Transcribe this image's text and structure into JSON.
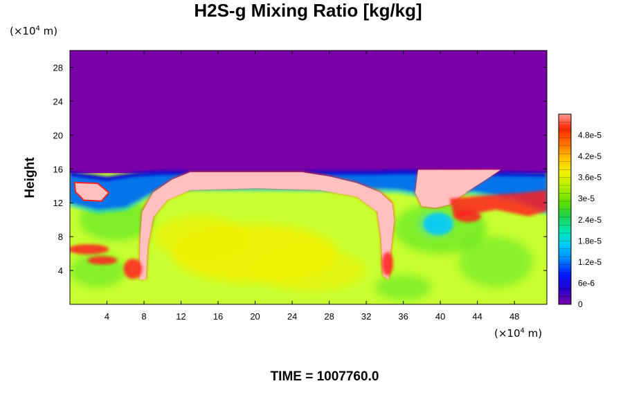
{
  "chart_data": {
    "type": "heatmap",
    "title": "H2S-g Mixing Ratio [kg/kg]",
    "ylabel": "Height",
    "x_units_base": "(×10",
    "x_units_exp": "4",
    "x_units_tail": " m)",
    "y_units_base": "(×10",
    "y_units_exp": "4",
    "y_units_tail": " m)",
    "footer": "TIME = 1007760.0",
    "xlim": [
      0,
      51.5
    ],
    "ylim": [
      0,
      30
    ],
    "x_ticks": [
      4,
      8,
      12,
      16,
      20,
      24,
      28,
      32,
      36,
      40,
      44,
      48
    ],
    "y_ticks": [
      4,
      8,
      12,
      16,
      20,
      24,
      28
    ],
    "colorbar": {
      "range": [
        0,
        5.4e-05
      ],
      "ticks": [
        {
          "value": 0,
          "label": "0"
        },
        {
          "value": 6e-06,
          "label": "6e-6"
        },
        {
          "value": 1.2e-05,
          "label": "1.2e-5"
        },
        {
          "value": 1.8e-05,
          "label": "1.8e-5"
        },
        {
          "value": 2.4e-05,
          "label": "2.4e-5"
        },
        {
          "value": 3e-05,
          "label": "3e-5"
        },
        {
          "value": 3.6e-05,
          "label": "3.6e-5"
        },
        {
          "value": 4.2e-05,
          "label": "4.2e-5"
        },
        {
          "value": 4.8e-05,
          "label": "4.8e-5"
        }
      ],
      "colors": [
        "#7a00a8",
        "#2a00c8",
        "#0018ff",
        "#0080ff",
        "#00c8ff",
        "#00e8b0",
        "#20d050",
        "#60e000",
        "#b0ee00",
        "#f0f000",
        "#ffc000",
        "#ff7000",
        "#ff2800",
        "#ff9a9a"
      ]
    },
    "colors": {
      "upper": "#7a00a8",
      "lower": "#c8ff30",
      "plume": "#ffc0c0",
      "edge": "#ff2020",
      "boundary_blue": "#1010d0",
      "boundary_cyan": "#00c8ff",
      "boundary_green": "#40e020",
      "core": "#f0f000"
    },
    "regions": [
      {
        "name": "upper atmosphere",
        "value": 0,
        "y_range": [
          15.5,
          30
        ]
      },
      {
        "name": "plume cap",
        "value": 5.4e-05,
        "x_range": [
          8,
          35
        ],
        "y_range": [
          13,
          15.5
        ]
      },
      {
        "name": "lower layer",
        "value": 3.2e-05,
        "y_range": [
          0,
          13
        ]
      }
    ],
    "interface_height": 15.5,
    "grid": false
  }
}
